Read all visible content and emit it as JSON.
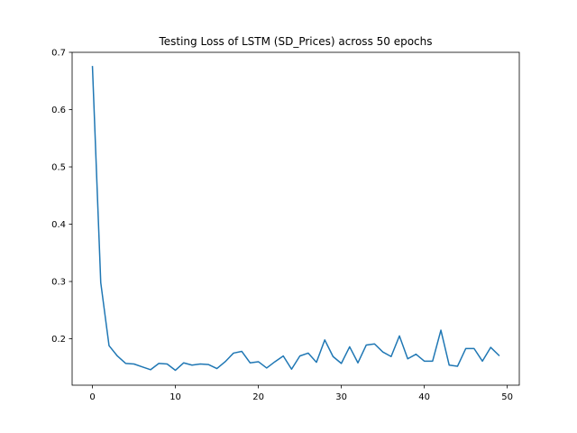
{
  "chart_data": {
    "type": "line",
    "title": "Testing Loss of LSTM (SD_Prices) across 50 epochs",
    "xlabel": "",
    "ylabel": "",
    "xlim": [
      -2.45,
      51.45
    ],
    "ylim": [
      0.119,
      0.7
    ],
    "xticks": [
      0,
      10,
      20,
      30,
      40,
      50
    ],
    "yticks": [
      0.2,
      0.3,
      0.4,
      0.5,
      0.6,
      0.7
    ],
    "grid": false,
    "series": [
      {
        "color": "#1f77b4",
        "x": [
          0,
          1,
          2,
          3,
          4,
          5,
          6,
          7,
          8,
          9,
          10,
          11,
          12,
          13,
          14,
          15,
          16,
          17,
          18,
          19,
          20,
          21,
          22,
          23,
          24,
          25,
          26,
          27,
          28,
          29,
          30,
          31,
          32,
          33,
          34,
          35,
          36,
          37,
          38,
          39,
          40,
          41,
          42,
          43,
          44,
          45,
          46,
          47,
          48,
          49
        ],
        "values": [
          0.675,
          0.298,
          0.188,
          0.17,
          0.157,
          0.156,
          0.151,
          0.146,
          0.157,
          0.156,
          0.145,
          0.158,
          0.154,
          0.156,
          0.155,
          0.148,
          0.16,
          0.175,
          0.178,
          0.158,
          0.16,
          0.149,
          0.16,
          0.17,
          0.147,
          0.17,
          0.175,
          0.159,
          0.198,
          0.169,
          0.157,
          0.186,
          0.158,
          0.189,
          0.191,
          0.177,
          0.169,
          0.205,
          0.165,
          0.173,
          0.161,
          0.161,
          0.215,
          0.154,
          0.152,
          0.183,
          0.183,
          0.161,
          0.185,
          0.171
        ]
      }
    ]
  }
}
